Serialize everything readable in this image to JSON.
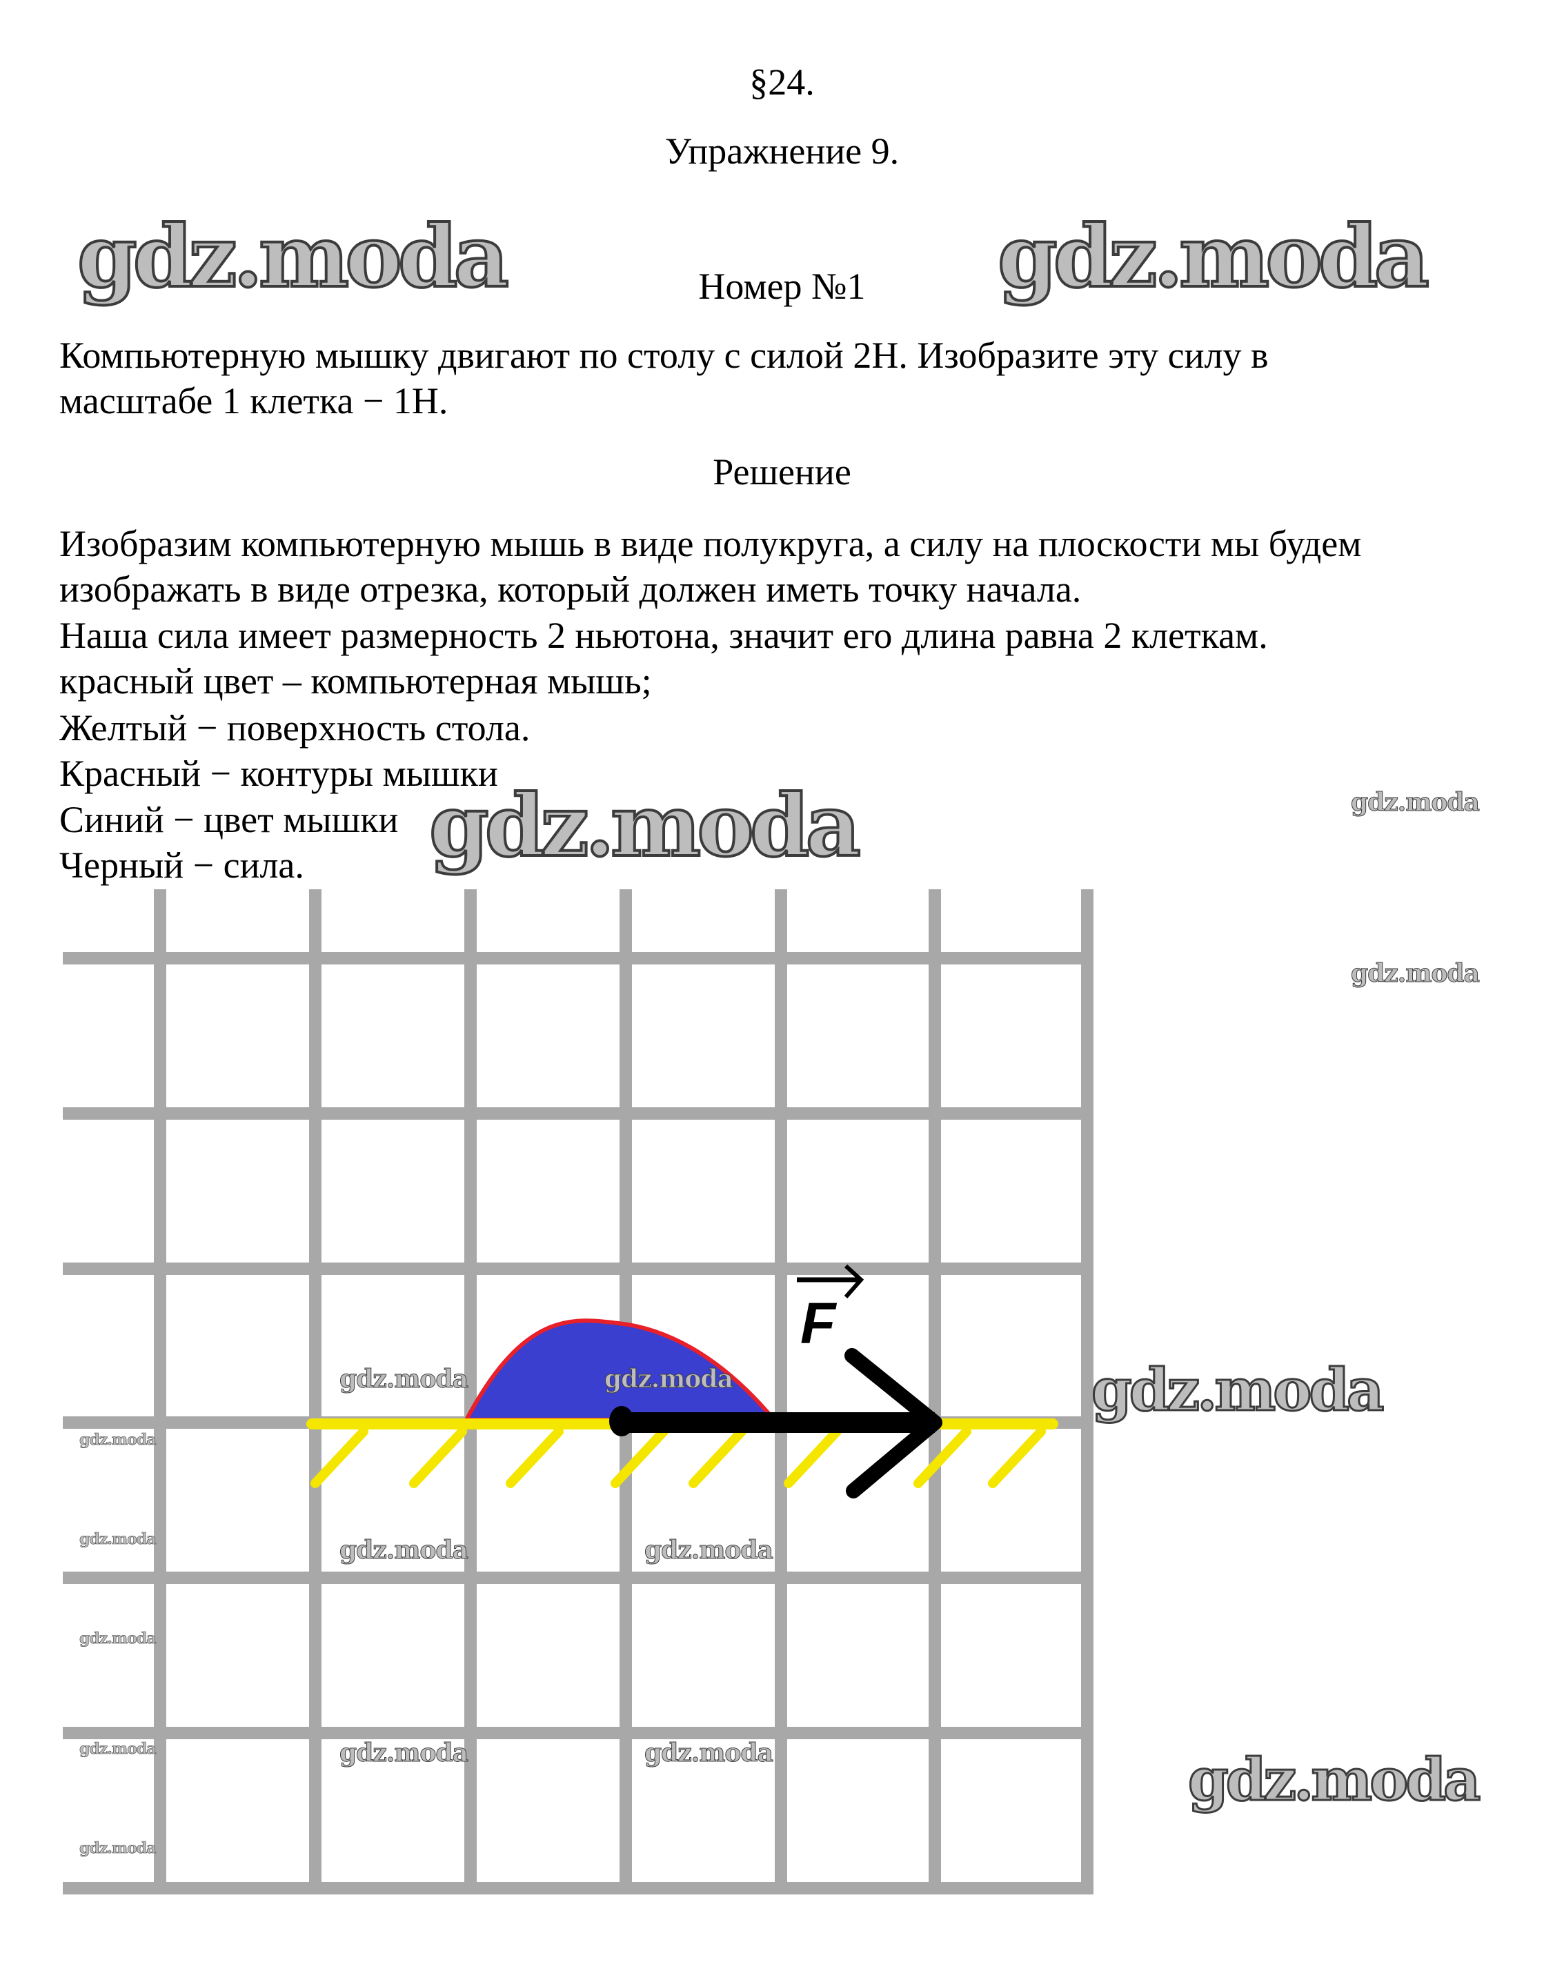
{
  "header": {
    "section": "§24.",
    "exercise": "Упражнение 9.",
    "number": "Номер №1"
  },
  "problem": {
    "lines": [
      "Компьютерную мышку двигают по столу с силой 2Н. Изобразите эту силу в",
      "масштабе 1 клетка − 1Н."
    ]
  },
  "solution": {
    "heading": "Решение",
    "lines": [
      "Изобразим компьютерную мышь в виде полукруга, а силу на плоскости мы будем",
      "изображать в виде отрезка, который должен иметь точку начала.",
      "Наша сила имеет размерность 2 ньютона, значит его длина равна 2 клеткам.",
      "красный цвет – компьютерная мышь;",
      "Желтый − поверхность стола.",
      "Красный − контуры мышки",
      "Синий − цвет мышки",
      "Черный − сила."
    ]
  },
  "figure": {
    "force_label": "F",
    "force_cells": 2,
    "colors": {
      "grid": "#a8a8a8",
      "surface": "#f5e600",
      "mouse_fill": "#3a3fcf",
      "mouse_outline": "#e8202a",
      "force": "#000000"
    }
  },
  "watermark": "gdz.moda"
}
